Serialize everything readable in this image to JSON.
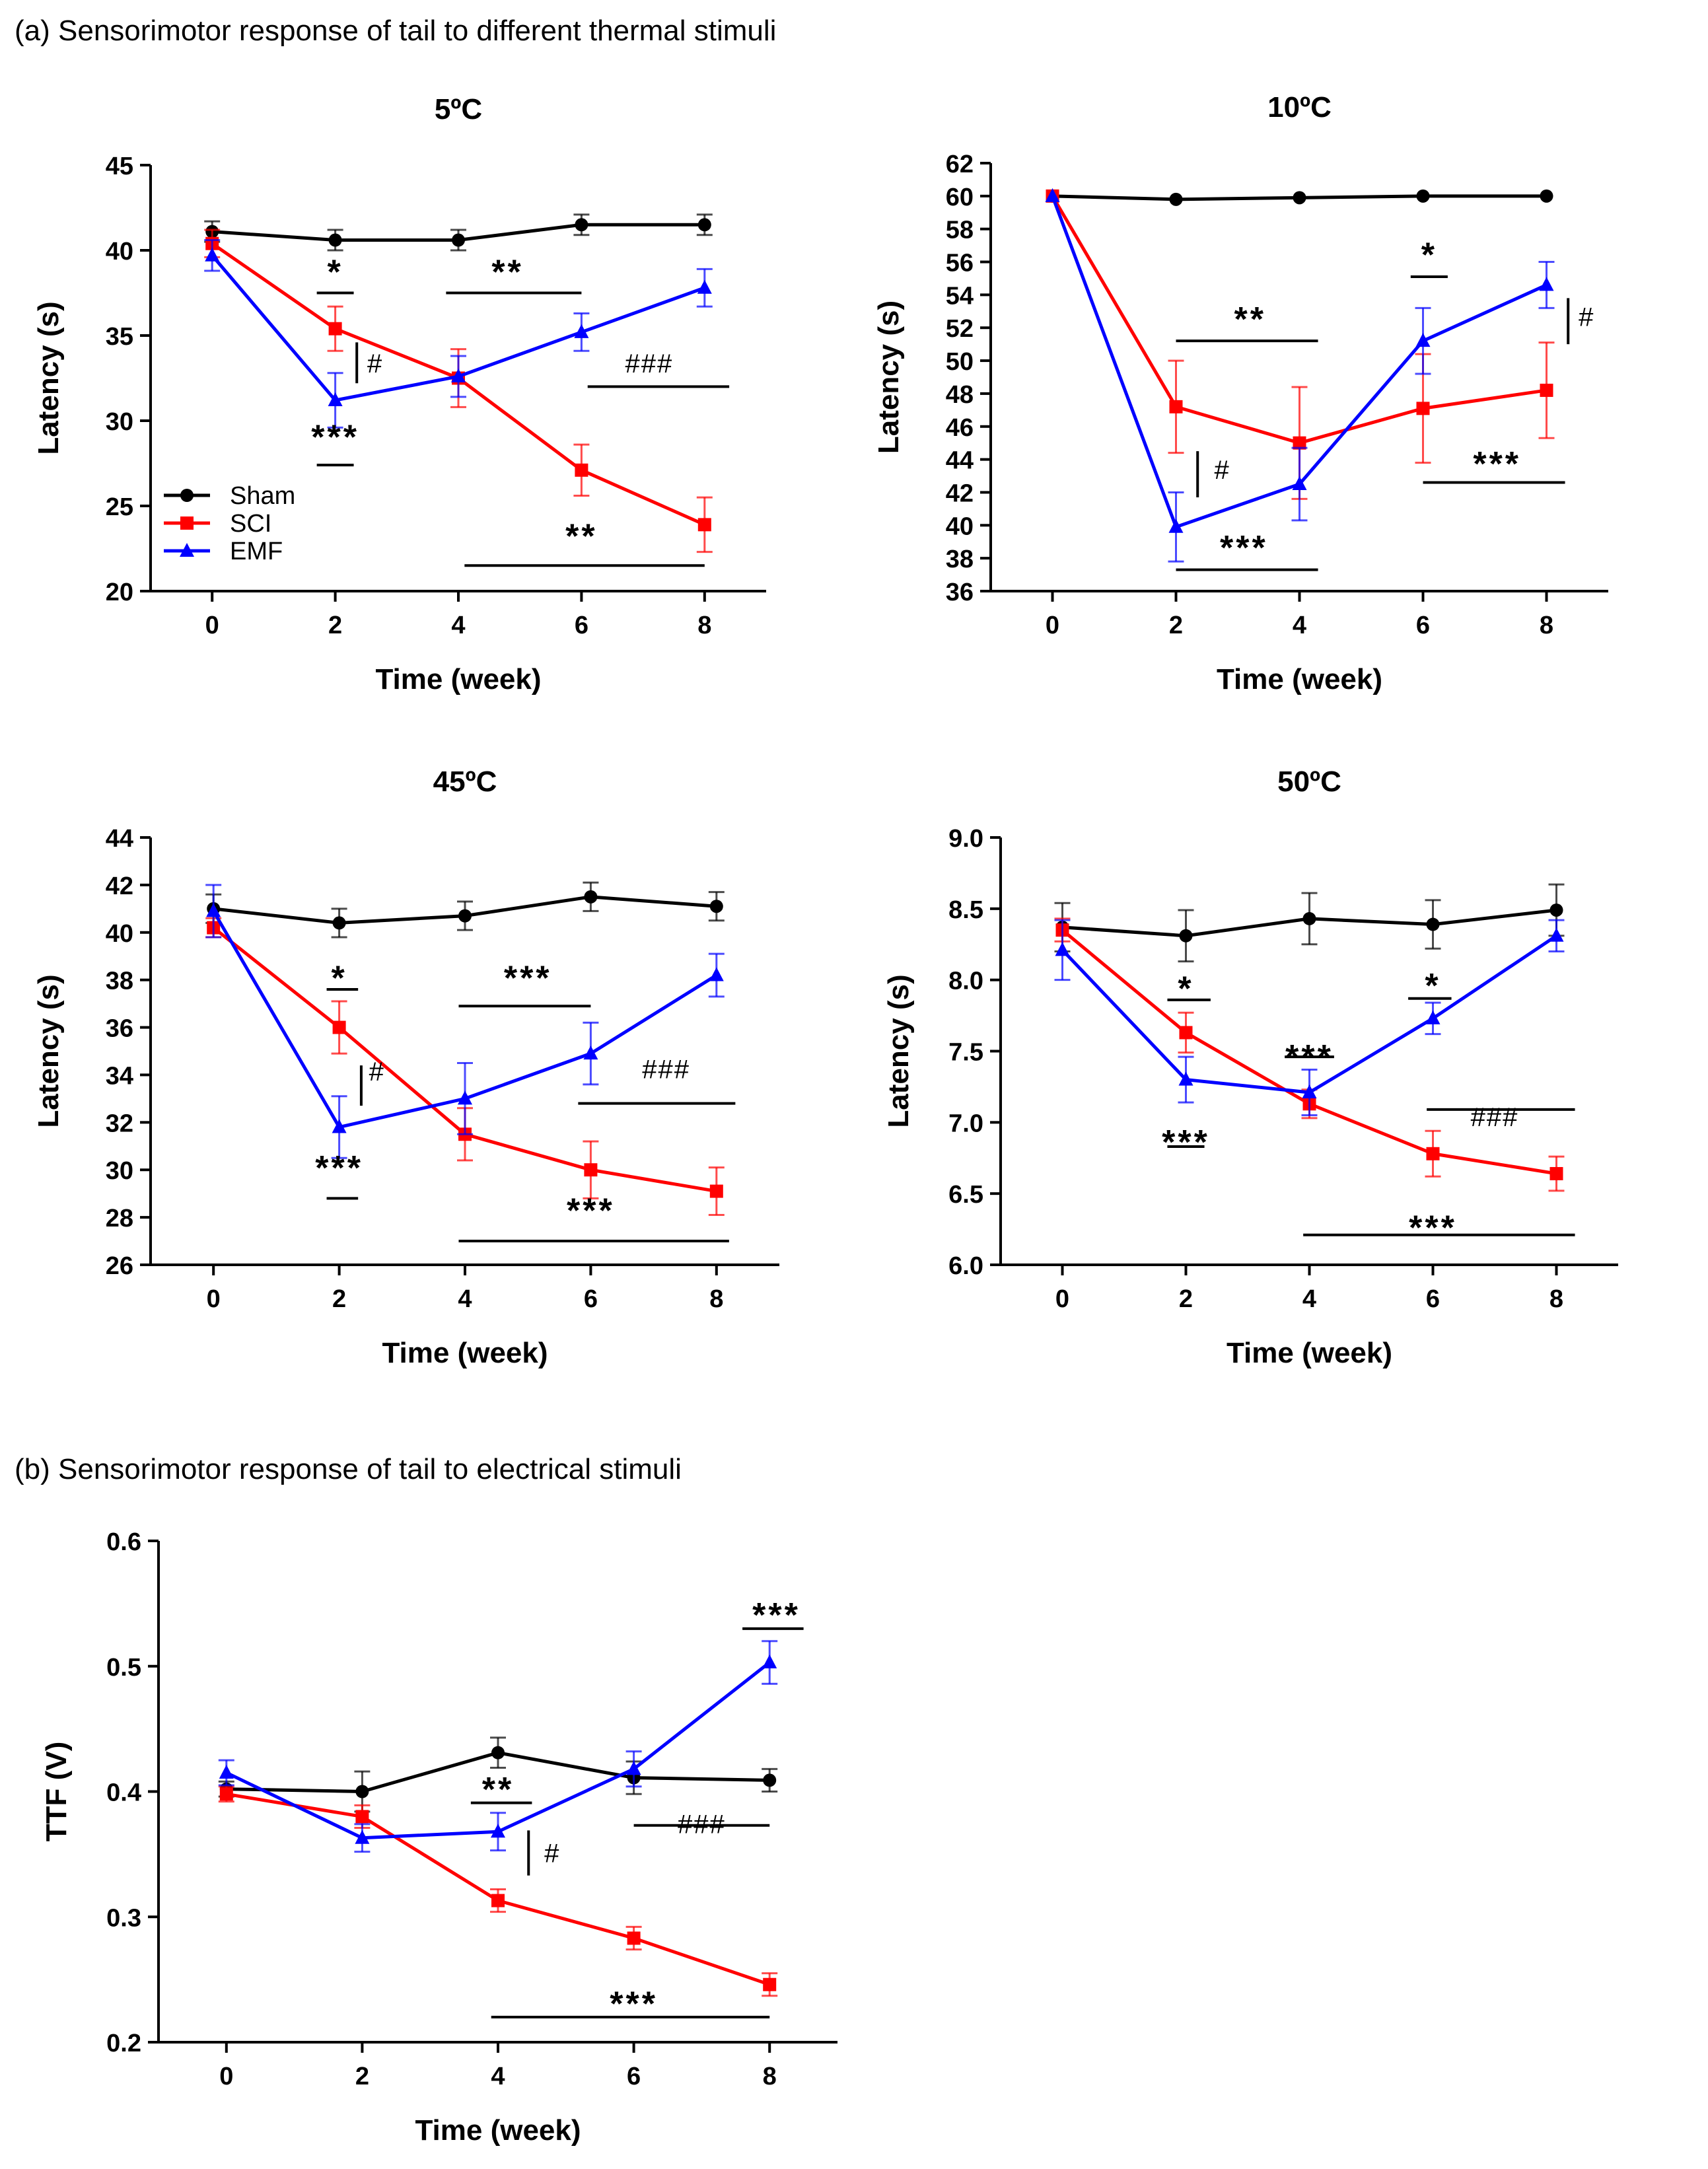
{
  "section_a_title": "(a) Sensorimotor response of tail to different thermal stimuli",
  "section_b_title": "(b) Sensorimotor response of tail to electrical stimuli",
  "colors": {
    "Sham": "#000000",
    "SCI": "#ff0000",
    "EMF": "#0000ff",
    "axis": "#000000"
  },
  "legend": [
    {
      "name": "Sham",
      "marker": "circle"
    },
    {
      "name": "SCI",
      "marker": "square"
    },
    {
      "name": "EMF",
      "marker": "triangle"
    }
  ],
  "chart_data": [
    {
      "id": "5C",
      "type": "line",
      "title": "5ºC",
      "xlabel": "Time (week)",
      "ylabel": "Latency (s)",
      "x": [
        0,
        2,
        4,
        6,
        8
      ],
      "xlim": [
        -1,
        9
      ],
      "ylim": [
        20,
        45
      ],
      "yticks": [
        20,
        25,
        30,
        35,
        40,
        45
      ],
      "ydec": 0,
      "series": [
        {
          "name": "Sham",
          "values": [
            41.1,
            40.6,
            40.6,
            41.5,
            41.5
          ],
          "err": [
            0.6,
            0.6,
            0.6,
            0.6,
            0.6
          ]
        },
        {
          "name": "SCI",
          "values": [
            40.4,
            35.4,
            32.5,
            27.1,
            23.9
          ],
          "err": [
            0.8,
            1.3,
            1.7,
            1.5,
            1.6
          ]
        },
        {
          "name": "EMF",
          "values": [
            39.7,
            31.2,
            32.6,
            35.2,
            37.8
          ],
          "err": [
            0.9,
            1.6,
            1.2,
            1.1,
            1.1
          ]
        }
      ],
      "annotations": [
        {
          "text": "*",
          "x": 2.0,
          "y": 38.9
        },
        {
          "text": "**",
          "x": 4.8,
          "y": 38.9
        },
        {
          "text": "#",
          "x": 2.65,
          "y": 33.3
        },
        {
          "text": "###",
          "x": 7.1,
          "y": 33.3
        },
        {
          "text": "***",
          "x": 2.0,
          "y": 29.2
        },
        {
          "text": "**",
          "x": 6.0,
          "y": 23.4
        }
      ],
      "hlines": [
        {
          "x1": 1.7,
          "x2": 2.3,
          "y": 37.5
        },
        {
          "x1": 3.8,
          "x2": 6.0,
          "y": 37.5
        },
        {
          "x1": 6.1,
          "x2": 8.4,
          "y": 32.0
        },
        {
          "x1": 1.7,
          "x2": 2.3,
          "y": 27.4
        },
        {
          "x1": 4.1,
          "x2": 8.0,
          "y": 21.5
        }
      ],
      "vlines": [
        {
          "x": 2.35,
          "y1": 32.2,
          "y2": 34.6
        }
      ],
      "show_legend": true
    },
    {
      "id": "10C",
      "type": "line",
      "title": "10ºC",
      "xlabel": "Time (week)",
      "ylabel": "Latency (s)",
      "x": [
        0,
        2,
        4,
        6,
        8
      ],
      "xlim": [
        -1,
        9
      ],
      "ylim": [
        36,
        62
      ],
      "yticks": [
        36,
        38,
        40,
        42,
        44,
        46,
        48,
        50,
        52,
        54,
        56,
        58,
        60,
        62
      ],
      "ydec": 0,
      "series": [
        {
          "name": "Sham",
          "values": [
            60.0,
            59.8,
            59.9,
            60.0,
            60.0
          ],
          "err": [
            0,
            0,
            0,
            0,
            0
          ]
        },
        {
          "name": "SCI",
          "values": [
            60.0,
            47.2,
            45.0,
            47.1,
            48.2
          ],
          "err": [
            0,
            2.8,
            3.4,
            3.3,
            2.9
          ]
        },
        {
          "name": "EMF",
          "values": [
            60.0,
            39.9,
            42.5,
            51.2,
            54.6
          ],
          "err": [
            0,
            2.1,
            2.2,
            2.0,
            1.4
          ]
        }
      ],
      "annotations": [
        {
          "text": "**",
          "x": 3.2,
          "y": 52.7
        },
        {
          "text": "*",
          "x": 6.1,
          "y": 56.6
        },
        {
          "text": "#",
          "x": 8.65,
          "y": 52.6
        },
        {
          "text": "#",
          "x": 2.75,
          "y": 43.3
        },
        {
          "text": "***",
          "x": 7.2,
          "y": 43.9
        },
        {
          "text": "***",
          "x": 3.1,
          "y": 38.8
        }
      ],
      "hlines": [
        {
          "x1": 2.0,
          "x2": 4.3,
          "y": 51.2
        },
        {
          "x1": 5.8,
          "x2": 6.4,
          "y": 55.1
        },
        {
          "x1": 6.0,
          "x2": 8.3,
          "y": 42.6
        },
        {
          "x1": 2.0,
          "x2": 4.3,
          "y": 37.3
        }
      ],
      "vlines": [
        {
          "x": 8.35,
          "y1": 51.0,
          "y2": 53.8
        },
        {
          "x": 2.35,
          "y1": 41.7,
          "y2": 44.5
        }
      ],
      "show_legend": false
    },
    {
      "id": "45C",
      "type": "line",
      "title": "45ºC",
      "xlabel": "Time (week)",
      "ylabel": "Latency (s)",
      "x": [
        0,
        2,
        4,
        6,
        8
      ],
      "xlim": [
        -1,
        9
      ],
      "ylim": [
        26,
        44
      ],
      "yticks": [
        26,
        28,
        30,
        32,
        34,
        36,
        38,
        40,
        42,
        44
      ],
      "ydec": 0,
      "series": [
        {
          "name": "Sham",
          "values": [
            41.0,
            40.4,
            40.7,
            41.5,
            41.1
          ],
          "err": [
            0.6,
            0.6,
            0.6,
            0.6,
            0.6
          ]
        },
        {
          "name": "SCI",
          "values": [
            40.2,
            36.0,
            31.5,
            30.0,
            29.1
          ],
          "err": [
            0.4,
            1.1,
            1.1,
            1.2,
            1.0
          ]
        },
        {
          "name": "EMF",
          "values": [
            40.9,
            31.8,
            33.0,
            34.9,
            38.2
          ],
          "err": [
            1.1,
            1.3,
            1.5,
            1.3,
            0.9
          ]
        }
      ],
      "annotations": [
        {
          "text": "*",
          "x": 2.0,
          "y": 38.2
        },
        {
          "text": "***",
          "x": 5.0,
          "y": 38.2
        },
        {
          "text": "#",
          "x": 2.6,
          "y": 34.1
        },
        {
          "text": "###",
          "x": 7.2,
          "y": 34.2
        },
        {
          "text": "***",
          "x": 2.0,
          "y": 30.2
        },
        {
          "text": "***",
          "x": 6.0,
          "y": 28.4
        }
      ],
      "hlines": [
        {
          "x1": 1.8,
          "x2": 2.3,
          "y": 37.6
        },
        {
          "x1": 3.9,
          "x2": 6.0,
          "y": 36.9
        },
        {
          "x1": 5.8,
          "x2": 8.3,
          "y": 32.8
        },
        {
          "x1": 1.8,
          "x2": 2.3,
          "y": 28.8
        },
        {
          "x1": 3.9,
          "x2": 8.2,
          "y": 27.0
        }
      ],
      "vlines": [
        {
          "x": 2.35,
          "y1": 32.7,
          "y2": 34.4
        }
      ],
      "show_legend": false
    },
    {
      "id": "50C",
      "type": "line",
      "title": "50ºC",
      "xlabel": "Time (week)",
      "ylabel": "Latency (s)",
      "x": [
        0,
        2,
        4,
        6,
        8
      ],
      "xlim": [
        -1,
        9
      ],
      "ylim": [
        6.0,
        9.0
      ],
      "yticks": [
        6.0,
        6.5,
        7.0,
        7.5,
        8.0,
        8.5,
        9.0
      ],
      "ydec": 1,
      "series": [
        {
          "name": "Sham",
          "values": [
            8.37,
            8.31,
            8.43,
            8.39,
            8.49
          ],
          "err": [
            0.17,
            0.18,
            0.18,
            0.17,
            0.18
          ]
        },
        {
          "name": "SCI",
          "values": [
            8.35,
            7.63,
            7.13,
            6.78,
            6.64
          ],
          "err": [
            0.08,
            0.14,
            0.1,
            0.16,
            0.12
          ]
        },
        {
          "name": "EMF",
          "values": [
            8.21,
            7.3,
            7.21,
            7.73,
            8.31
          ],
          "err": [
            0.21,
            0.16,
            0.16,
            0.11,
            0.11
          ]
        }
      ],
      "annotations": [
        {
          "text": "*",
          "x": 2.0,
          "y": 7.96
        },
        {
          "text": "***",
          "x": 4.0,
          "y": 7.48
        },
        {
          "text": "*",
          "x": 6.0,
          "y": 7.98
        },
        {
          "text": "###",
          "x": 7.0,
          "y": 7.03
        },
        {
          "text": "***",
          "x": 2.0,
          "y": 6.88
        },
        {
          "text": "***",
          "x": 6.0,
          "y": 6.28
        }
      ],
      "hlines": [
        {
          "x1": 1.7,
          "x2": 2.4,
          "y": 7.86
        },
        {
          "x1": 3.6,
          "x2": 4.4,
          "y": 7.46
        },
        {
          "x1": 5.6,
          "x2": 6.3,
          "y": 7.87
        },
        {
          "x1": 5.9,
          "x2": 8.3,
          "y": 7.09
        },
        {
          "x1": 1.7,
          "x2": 2.3,
          "y": 6.83
        },
        {
          "x1": 3.9,
          "x2": 8.3,
          "y": 6.21
        }
      ],
      "vlines": [],
      "show_legend": false
    },
    {
      "id": "TTF",
      "type": "line",
      "title": "",
      "xlabel": "Time (week)",
      "ylabel": "TTF (V)",
      "x": [
        0,
        2,
        4,
        6,
        8
      ],
      "xlim": [
        -1,
        9
      ],
      "ylim": [
        0.2,
        0.6
      ],
      "yticks": [
        0.2,
        0.3,
        0.4,
        0.5,
        0.6
      ],
      "ydec": 1,
      "series": [
        {
          "name": "Sham",
          "values": [
            0.402,
            0.4,
            0.431,
            0.411,
            0.409
          ],
          "err": [
            0.006,
            0.016,
            0.012,
            0.013,
            0.009
          ]
        },
        {
          "name": "SCI",
          "values": [
            0.398,
            0.38,
            0.313,
            0.283,
            0.246
          ],
          "err": [
            0.006,
            0.009,
            0.009,
            0.009,
            0.009
          ]
        },
        {
          "name": "EMF",
          "values": [
            0.415,
            0.363,
            0.368,
            0.418,
            0.503
          ],
          "err": [
            0.01,
            0.011,
            0.015,
            0.014,
            0.017
          ]
        }
      ],
      "annotations": [
        {
          "text": "***",
          "x": 8.1,
          "y": 0.543
        },
        {
          "text": "**",
          "x": 4.0,
          "y": 0.404
        },
        {
          "text": "#",
          "x": 4.8,
          "y": 0.35
        },
        {
          "text": "###",
          "x": 7.0,
          "y": 0.373
        },
        {
          "text": "***",
          "x": 6.0,
          "y": 0.233
        }
      ],
      "hlines": [
        {
          "x1": 7.6,
          "x2": 8.5,
          "y": 0.53
        },
        {
          "x1": 3.6,
          "x2": 4.5,
          "y": 0.391
        },
        {
          "x1": 6.0,
          "x2": 8.0,
          "y": 0.373
        },
        {
          "x1": 3.9,
          "x2": 8.0,
          "y": 0.22
        }
      ],
      "vlines": [
        {
          "x": 4.45,
          "y1": 0.333,
          "y2": 0.369
        }
      ],
      "show_legend": false
    }
  ]
}
